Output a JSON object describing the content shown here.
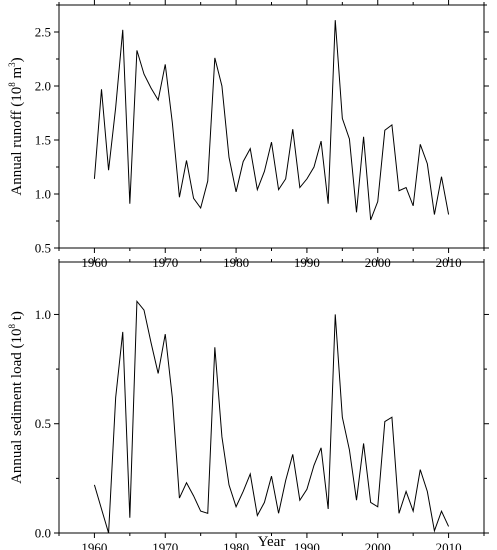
{
  "chart_data": [
    {
      "type": "line",
      "title": "",
      "xlabel": "",
      "ylabel": {
        "main": "Annual runoff (10",
        "sup": "8",
        "mid": " m",
        "sup2": "3",
        "end": ")"
      },
      "xlim": [
        1955,
        2015
      ],
      "ylim": [
        0.5,
        2.75
      ],
      "xticks": [
        "1960",
        "1970",
        "1980",
        "1990",
        "2000",
        "2010"
      ],
      "yticks": [
        "0.5",
        "1.0",
        "1.5",
        "2.0",
        "2.5"
      ],
      "x": [
        1960,
        1961,
        1962,
        1963,
        1964,
        1965,
        1966,
        1967,
        1968,
        1969,
        1970,
        1971,
        1972,
        1973,
        1974,
        1975,
        1976,
        1977,
        1978,
        1979,
        1980,
        1981,
        1982,
        1983,
        1984,
        1985,
        1986,
        1987,
        1988,
        1989,
        1990,
        1991,
        1992,
        1993,
        1994,
        1995,
        1996,
        1997,
        1998,
        1999,
        2000,
        2001,
        2002,
        2003,
        2004,
        2005,
        2006,
        2007,
        2008,
        2009,
        2010
      ],
      "series": [
        {
          "values": [
            1.14,
            1.97,
            1.22,
            1.8,
            2.52,
            0.91,
            2.33,
            2.11,
            1.98,
            1.87,
            2.2,
            1.66,
            0.97,
            1.31,
            0.96,
            0.87,
            1.12,
            2.26,
            2.0,
            1.34,
            1.02,
            1.3,
            1.42,
            1.04,
            1.21,
            1.48,
            1.04,
            1.14,
            1.6,
            1.06,
            1.14,
            1.25,
            1.49,
            0.91,
            2.61,
            1.7,
            1.51,
            0.83,
            1.53,
            0.76,
            0.93,
            1.59,
            1.64,
            1.03,
            1.06,
            0.89,
            1.46,
            1.28,
            0.81,
            1.16,
            0.81
          ]
        }
      ]
    },
    {
      "type": "line",
      "title": "",
      "xlabel": "Year",
      "ylabel": {
        "main": "Annual sediment load (10",
        "sup": "8",
        "mid": " t",
        "sup2": "",
        "end": ")"
      },
      "xlim": [
        1955,
        2015
      ],
      "ylim": [
        0.0,
        1.24
      ],
      "xticks": [
        "1960",
        "1970",
        "1980",
        "1990",
        "2000",
        "2010"
      ],
      "yticks": [
        "0.0",
        "0.5",
        "1.0"
      ],
      "x": [
        1960,
        1961,
        1962,
        1963,
        1964,
        1965,
        1966,
        1967,
        1968,
        1969,
        1970,
        1971,
        1972,
        1973,
        1974,
        1975,
        1976,
        1977,
        1978,
        1979,
        1980,
        1981,
        1982,
        1983,
        1984,
        1985,
        1986,
        1987,
        1988,
        1989,
        1990,
        1991,
        1992,
        1993,
        1994,
        1995,
        1996,
        1997,
        1998,
        1999,
        2000,
        2001,
        2002,
        2003,
        2004,
        2005,
        2006,
        2007,
        2008,
        2009,
        2010
      ],
      "series": [
        {
          "values": [
            0.22,
            0.11,
            0.0,
            0.62,
            0.92,
            0.07,
            1.06,
            1.02,
            0.87,
            0.73,
            0.91,
            0.62,
            0.16,
            0.23,
            0.17,
            0.1,
            0.09,
            0.85,
            0.44,
            0.22,
            0.12,
            0.19,
            0.27,
            0.08,
            0.14,
            0.26,
            0.09,
            0.24,
            0.36,
            0.15,
            0.2,
            0.31,
            0.39,
            0.11,
            1.0,
            0.53,
            0.38,
            0.15,
            0.41,
            0.14,
            0.12,
            0.51,
            0.53,
            0.09,
            0.19,
            0.1,
            0.29,
            0.19,
            0.01,
            0.1,
            0.03
          ]
        }
      ]
    }
  ]
}
